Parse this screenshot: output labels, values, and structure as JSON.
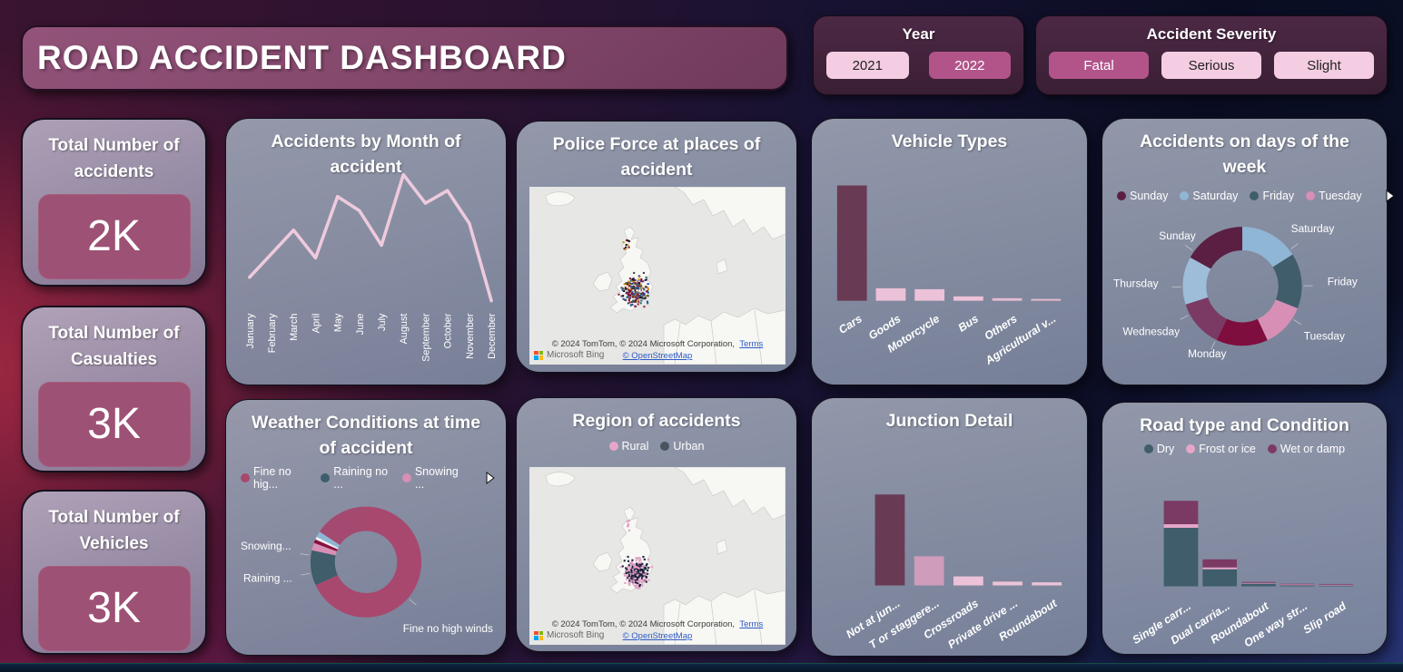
{
  "title": "ROAD ACCIDENT DASHBOARD",
  "filters": {
    "year": {
      "label": "Year",
      "options": [
        {
          "label": "2021",
          "selected": false
        },
        {
          "label": "2022",
          "selected": true
        }
      ]
    },
    "severity": {
      "label": "Accident Severity",
      "options": [
        {
          "label": "Fatal",
          "selected": true
        },
        {
          "label": "Serious",
          "selected": false
        },
        {
          "label": "Slight",
          "selected": false
        }
      ]
    }
  },
  "kpis": [
    {
      "title": "Total Number of accidents",
      "value": "2K"
    },
    {
      "title": "Total Number of Casualties",
      "value": "3K"
    },
    {
      "title": "Total Number of Vehicles",
      "value": "3K"
    }
  ],
  "map_attribution": {
    "line1": "© 2024 TomTom, © 2024 Microsoft Corporation,",
    "terms": "Terms",
    "line2": "© OpenStreetMap",
    "logo_text": "Microsoft Bing"
  },
  "theme": {
    "accent_dark_bar": "#693a54",
    "accent_pink_bar": "#ecc2d8",
    "button_light": "#f4cde2",
    "button_dark": "#b2548a",
    "line_color": "#eecadd"
  },
  "chart_data": [
    {
      "id": "months_line",
      "type": "line",
      "title": "Accidents by Month of accident",
      "x": [
        "January",
        "February",
        "March",
        "April",
        "May",
        "June",
        "July",
        "August",
        "September",
        "October",
        "November",
        "December"
      ],
      "values": [
        118,
        146,
        174,
        141,
        214,
        197,
        156,
        240,
        206,
        221,
        182,
        90
      ],
      "ylim": [
        80,
        250
      ],
      "line_color": "#eecadd",
      "grid": false
    },
    {
      "id": "police_map",
      "type": "map",
      "title": "Police Force at places of accident",
      "dot_palette": [
        "#111111",
        "#7a0c2e",
        "#d97711",
        "#1f4fae",
        "#26707a",
        "#c9a227",
        "#5b4a8a",
        "#444444",
        "#eeeeee",
        "#9b2242"
      ]
    },
    {
      "id": "vehicle_bar",
      "type": "bar",
      "title": "Vehicle Types",
      "categories": [
        "Cars",
        "Goods",
        "Motorcycle",
        "Bus",
        "Others",
        "Agricultural v..."
      ],
      "values": [
        2500,
        270,
        250,
        95,
        55,
        40
      ],
      "bar_colors": [
        "#693a54",
        "#ecc2d8",
        "#ecc2d8",
        "#ecc2d8",
        "#e6bcd3",
        "#e2b9cf"
      ]
    },
    {
      "id": "days_donut",
      "type": "pie",
      "title": "Accidents on days of the week",
      "segments": [
        {
          "label": "Saturday",
          "value": 16,
          "color": "#8fb6d4"
        },
        {
          "label": "Friday",
          "value": 15,
          "color": "#3f5d6b"
        },
        {
          "label": "Tuesday",
          "value": 12,
          "color": "#d78fb5"
        },
        {
          "label": "Monday",
          "value": 14,
          "color": "#7e0e3e"
        },
        {
          "label": "Wednesday",
          "value": 13,
          "color": "#7b3a64"
        },
        {
          "label": "Thursday",
          "value": 13,
          "color": "#9dbdd8"
        },
        {
          "label": "Sunday",
          "value": 17,
          "color": "#5a1f43"
        }
      ],
      "legend": [
        {
          "label": "Sunday",
          "color": "#5a1f43"
        },
        {
          "label": "Saturday",
          "color": "#8fb6d4"
        },
        {
          "label": "Friday",
          "color": "#3f5d6b"
        },
        {
          "label": "Tuesday",
          "color": "#d78fb5"
        }
      ],
      "legend_overflow": true
    },
    {
      "id": "weather_donut",
      "type": "pie",
      "title": "Weather Conditions at time of accident",
      "segments": [
        {
          "label": "Fine no high winds",
          "value": 68,
          "color": "#a8486e"
        },
        {
          "label": "Raining ...",
          "value": 10.3,
          "color": "#3f5d6b"
        },
        {
          "label": "Snowing...",
          "value": 2.2,
          "color": "#d78fb5"
        },
        {
          "label": "",
          "value": 1.1,
          "color": "#8a0f3f"
        },
        {
          "label": "",
          "value": 0.8,
          "color": "#f2f0f4"
        },
        {
          "label": "",
          "value": 1.7,
          "color": "#8fb6d4"
        },
        {
          "label": "",
          "value": 15.9,
          "color": "#a44a70"
        }
      ],
      "legend": [
        {
          "label": "Fine no hig...",
          "color": "#a8486e"
        },
        {
          "label": "Raining no ...",
          "color": "#3f5d6b"
        },
        {
          "label": "Snowing ...",
          "color": "#d78fb5"
        }
      ],
      "legend_overflow": true
    },
    {
      "id": "region_map",
      "type": "map",
      "title": "Region of accidents",
      "legend": [
        {
          "label": "Rural",
          "color": "#e7a6c8"
        },
        {
          "label": "Urban",
          "color": "#49525f"
        }
      ],
      "dot_palette": [
        "#e39ec4",
        "#18223a"
      ]
    },
    {
      "id": "junction_bar",
      "type": "bar",
      "title": "Junction Detail",
      "categories": [
        "Not at jun...",
        "T or staggere...",
        "Crossroads",
        "Private drive ...",
        "Roundabout"
      ],
      "values": [
        1310,
        420,
        130,
        55,
        45
      ],
      "bar_colors": [
        "#693a54",
        "#cf9cbb",
        "#ecc2d8",
        "#ecc2d8",
        "#ecc2d8"
      ]
    },
    {
      "id": "road_stacked",
      "type": "bar",
      "title": "Road type and Condition",
      "categories": [
        "Single carr...",
        "Dual carria...",
        "Roundabout",
        "One way str...",
        "Slip road"
      ],
      "series": [
        {
          "name": "Dry",
          "color": "#3f5d6b",
          "values": [
            1300,
            380,
            60,
            25,
            20
          ]
        },
        {
          "name": "Frost or ice",
          "color": "#e7a6c8",
          "values": [
            80,
            40,
            8,
            3,
            3
          ]
        },
        {
          "name": "Wet or damp",
          "color": "#7b3a64",
          "values": [
            520,
            180,
            20,
            8,
            7
          ]
        }
      ],
      "legend": [
        {
          "label": "Dry",
          "color": "#3f5d6b"
        },
        {
          "label": "Frost or ice",
          "color": "#e7a6c8"
        },
        {
          "label": "Wet or damp",
          "color": "#7b3a64"
        }
      ]
    }
  ]
}
